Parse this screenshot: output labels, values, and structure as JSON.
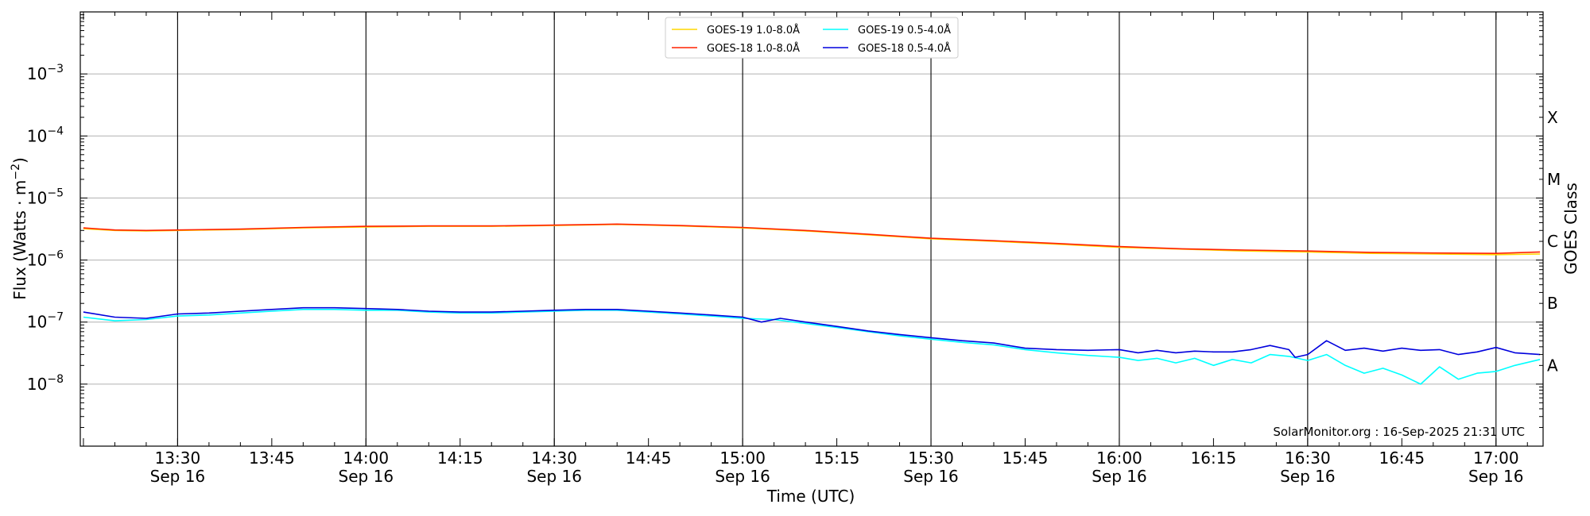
{
  "chart_data": {
    "type": "line",
    "title": "",
    "xlabel": "Time (UTC)",
    "ylabel": "Flux (Watts · m",
    "ylabel_sup": "−2",
    "ylabel_close": ")",
    "y2label": "GOES Class",
    "y_scale": "log",
    "ylim": [
      1e-09,
      0.01
    ],
    "x_domain_minutes": [
      794.5,
      1027.5
    ],
    "grid": "horizontal at decades; vertical lines at 30-minute marks",
    "legend_position": "top-center",
    "footer": "SolarMonitor.org : 16-Sep-2025 21:31 UTC",
    "yticks": [
      {
        "value": 1e-08,
        "base": "10",
        "exp": "−8"
      },
      {
        "value": 1e-07,
        "base": "10",
        "exp": "−7"
      },
      {
        "value": 1e-06,
        "base": "10",
        "exp": "−6"
      },
      {
        "value": 1e-05,
        "base": "10",
        "exp": "−5"
      },
      {
        "value": 0.0001,
        "base": "10",
        "exp": "−4"
      },
      {
        "value": 0.001,
        "base": "10",
        "exp": "−3"
      }
    ],
    "goes_classes": [
      {
        "label": "A",
        "value": 2e-08
      },
      {
        "label": "B",
        "value": 2e-07
      },
      {
        "label": "C",
        "value": 2e-06
      },
      {
        "label": "M",
        "value": 2e-05
      },
      {
        "label": "X",
        "value": 0.0002
      }
    ],
    "xticks": [
      {
        "minutes": 810,
        "time": "13:30",
        "date": "Sep 16"
      },
      {
        "minutes": 825,
        "time": "13:45",
        "date": ""
      },
      {
        "minutes": 840,
        "time": "14:00",
        "date": "Sep 16"
      },
      {
        "minutes": 855,
        "time": "14:15",
        "date": ""
      },
      {
        "minutes": 870,
        "time": "14:30",
        "date": "Sep 16"
      },
      {
        "minutes": 885,
        "time": "14:45",
        "date": ""
      },
      {
        "minutes": 900,
        "time": "15:00",
        "date": "Sep 16"
      },
      {
        "minutes": 915,
        "time": "15:15",
        "date": ""
      },
      {
        "minutes": 930,
        "time": "15:30",
        "date": "Sep 16"
      },
      {
        "minutes": 945,
        "time": "15:45",
        "date": ""
      },
      {
        "minutes": 960,
        "time": "16:00",
        "date": "Sep 16"
      },
      {
        "minutes": 975,
        "time": "16:15",
        "date": ""
      },
      {
        "minutes": 990,
        "time": "16:30",
        "date": "Sep 16"
      },
      {
        "minutes": 1005,
        "time": "16:45",
        "date": ""
      },
      {
        "minutes": 1020,
        "time": "17:00",
        "date": "Sep 16"
      }
    ],
    "vlines_minutes": [
      810,
      840,
      870,
      900,
      930,
      960,
      990,
      1020
    ],
    "series": [
      {
        "name": "GOES-19 1.0-8.0Å",
        "color": "#FFD700",
        "x": [
          795,
          800,
          805,
          810,
          820,
          830,
          840,
          850,
          860,
          870,
          880,
          890,
          900,
          910,
          920,
          930,
          940,
          950,
          960,
          970,
          980,
          990,
          1000,
          1010,
          1020,
          1027
        ],
        "y": [
          3.2e-06,
          3e-06,
          2.95e-06,
          3e-06,
          3.1e-06,
          3.3e-06,
          3.4e-06,
          3.5e-06,
          3.5e-06,
          3.6e-06,
          3.75e-06,
          3.55e-06,
          3.3e-06,
          2.95e-06,
          2.55e-06,
          2.2e-06,
          2e-06,
          1.8e-06,
          1.6e-06,
          1.5e-06,
          1.4e-06,
          1.35e-06,
          1.28e-06,
          1.25e-06,
          1.22e-06,
          1.25e-06
        ]
      },
      {
        "name": "GOES-18 1.0-8.0Å",
        "color": "#FF2200",
        "x": [
          795,
          800,
          805,
          810,
          820,
          830,
          840,
          850,
          860,
          870,
          880,
          890,
          900,
          910,
          920,
          930,
          940,
          950,
          960,
          970,
          980,
          990,
          1000,
          1010,
          1020,
          1027
        ],
        "y": [
          3.3e-06,
          3.05e-06,
          3e-06,
          3.05e-06,
          3.15e-06,
          3.35e-06,
          3.5e-06,
          3.55e-06,
          3.55e-06,
          3.65e-06,
          3.8e-06,
          3.6e-06,
          3.35e-06,
          3e-06,
          2.6e-06,
          2.25e-06,
          2.05e-06,
          1.85e-06,
          1.65e-06,
          1.52e-06,
          1.45e-06,
          1.4e-06,
          1.33e-06,
          1.3e-06,
          1.28e-06,
          1.35e-06
        ]
      },
      {
        "name": "GOES-19 0.5-4.0Å",
        "color": "#00FFFF",
        "x": [
          795,
          800,
          805,
          810,
          815,
          820,
          825,
          830,
          835,
          840,
          845,
          850,
          855,
          860,
          865,
          870,
          875,
          880,
          885,
          890,
          895,
          900,
          905,
          910,
          915,
          920,
          925,
          930,
          935,
          940,
          945,
          950,
          955,
          960,
          963,
          966,
          969,
          972,
          975,
          978,
          981,
          984,
          987,
          990,
          993,
          996,
          999,
          1002,
          1005,
          1008,
          1011,
          1014,
          1017,
          1020,
          1023,
          1027
        ],
        "y": [
          1.2e-07,
          1.05e-07,
          1.1e-07,
          1.25e-07,
          1.3e-07,
          1.4e-07,
          1.5e-07,
          1.6e-07,
          1.6e-07,
          1.55e-07,
          1.55e-07,
          1.45e-07,
          1.4e-07,
          1.4e-07,
          1.45e-07,
          1.5e-07,
          1.55e-07,
          1.55e-07,
          1.45e-07,
          1.35e-07,
          1.25e-07,
          1.15e-07,
          1.1e-07,
          9.5e-08,
          8.2e-08,
          7e-08,
          6e-08,
          5.3e-08,
          4.7e-08,
          4.3e-08,
          3.6e-08,
          3.2e-08,
          2.9e-08,
          2.7e-08,
          2.4e-08,
          2.6e-08,
          2.2e-08,
          2.6e-08,
          2e-08,
          2.5e-08,
          2.2e-08,
          3e-08,
          2.8e-08,
          2.4e-08,
          3e-08,
          2e-08,
          1.5e-08,
          1.8e-08,
          1.4e-08,
          1e-08,
          1.9e-08,
          1.2e-08,
          1.5e-08,
          1.6e-08,
          2e-08,
          2.5e-08
        ]
      },
      {
        "name": "GOES-18 0.5-4.0Å",
        "color": "#0000DD",
        "x": [
          795,
          800,
          805,
          810,
          815,
          820,
          825,
          830,
          835,
          840,
          845,
          850,
          855,
          860,
          865,
          870,
          875,
          880,
          885,
          890,
          895,
          900,
          903,
          906,
          910,
          915,
          920,
          925,
          930,
          935,
          940,
          945,
          950,
          955,
          960,
          963,
          966,
          969,
          972,
          975,
          978,
          981,
          984,
          987,
          988,
          990,
          993,
          996,
          999,
          1002,
          1005,
          1008,
          1011,
          1014,
          1017,
          1020,
          1023,
          1027
        ],
        "y": [
          1.45e-07,
          1.2e-07,
          1.15e-07,
          1.35e-07,
          1.4e-07,
          1.5e-07,
          1.6e-07,
          1.7e-07,
          1.7e-07,
          1.65e-07,
          1.6e-07,
          1.5e-07,
          1.45e-07,
          1.45e-07,
          1.5e-07,
          1.55e-07,
          1.6e-07,
          1.6e-07,
          1.5e-07,
          1.4e-07,
          1.3e-07,
          1.2e-07,
          1e-07,
          1.15e-07,
          1e-07,
          8.5e-08,
          7.2e-08,
          6.3e-08,
          5.6e-08,
          5e-08,
          4.6e-08,
          3.8e-08,
          3.6e-08,
          3.5e-08,
          3.6e-08,
          3.2e-08,
          3.5e-08,
          3.2e-08,
          3.4e-08,
          3.3e-08,
          3.3e-08,
          3.6e-08,
          4.2e-08,
          3.6e-08,
          2.7e-08,
          3e-08,
          5e-08,
          3.5e-08,
          3.8e-08,
          3.4e-08,
          3.8e-08,
          3.5e-08,
          3.6e-08,
          3e-08,
          3.3e-08,
          3.9e-08,
          3.2e-08,
          3e-08
        ]
      }
    ]
  }
}
